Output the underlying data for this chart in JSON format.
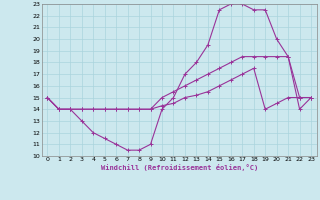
{
  "xlabel": "Windchill (Refroidissement éolien,°C)",
  "bg_color": "#cce8ee",
  "grid_color": "#aad4dd",
  "line_color": "#993399",
  "xlim": [
    -0.5,
    23.5
  ],
  "ylim": [
    10,
    23
  ],
  "xticks": [
    0,
    1,
    2,
    3,
    4,
    5,
    6,
    7,
    8,
    9,
    10,
    11,
    12,
    13,
    14,
    15,
    16,
    17,
    18,
    19,
    20,
    21,
    22,
    23
  ],
  "yticks": [
    10,
    11,
    12,
    13,
    14,
    15,
    16,
    17,
    18,
    19,
    20,
    21,
    22,
    23
  ],
  "line1_x": [
    0,
    1,
    2,
    3,
    4,
    5,
    6,
    7,
    8,
    9,
    10,
    11,
    12,
    13,
    14,
    15,
    16,
    17,
    18,
    19,
    20,
    21,
    22,
    23
  ],
  "line1_y": [
    15,
    14,
    14,
    13,
    12,
    11.5,
    11,
    10.5,
    10.5,
    11,
    14,
    15,
    17,
    18,
    19.5,
    22.5,
    23,
    23,
    22.5,
    22.5,
    20,
    18.5,
    14,
    15
  ],
  "line2_x": [
    0,
    1,
    2,
    3,
    4,
    5,
    6,
    7,
    8,
    9,
    10,
    11,
    12,
    13,
    14,
    15,
    16,
    17,
    18,
    19,
    20,
    21,
    22,
    23
  ],
  "line2_y": [
    15,
    14,
    14,
    14,
    14,
    14,
    14,
    14,
    14,
    14,
    15,
    15.5,
    16,
    16.5,
    17,
    17.5,
    18,
    18.5,
    18.5,
    18.5,
    18.5,
    18.5,
    15,
    15
  ],
  "line3_x": [
    0,
    1,
    2,
    3,
    4,
    5,
    6,
    7,
    8,
    9,
    10,
    11,
    12,
    13,
    14,
    15,
    16,
    17,
    18,
    19,
    20,
    21,
    22,
    23
  ],
  "line3_y": [
    15,
    14,
    14,
    14,
    14,
    14,
    14,
    14,
    14,
    14,
    14.3,
    14.5,
    15,
    15.2,
    15.5,
    16,
    16.5,
    17,
    17.5,
    14,
    14.5,
    15,
    15,
    15
  ]
}
